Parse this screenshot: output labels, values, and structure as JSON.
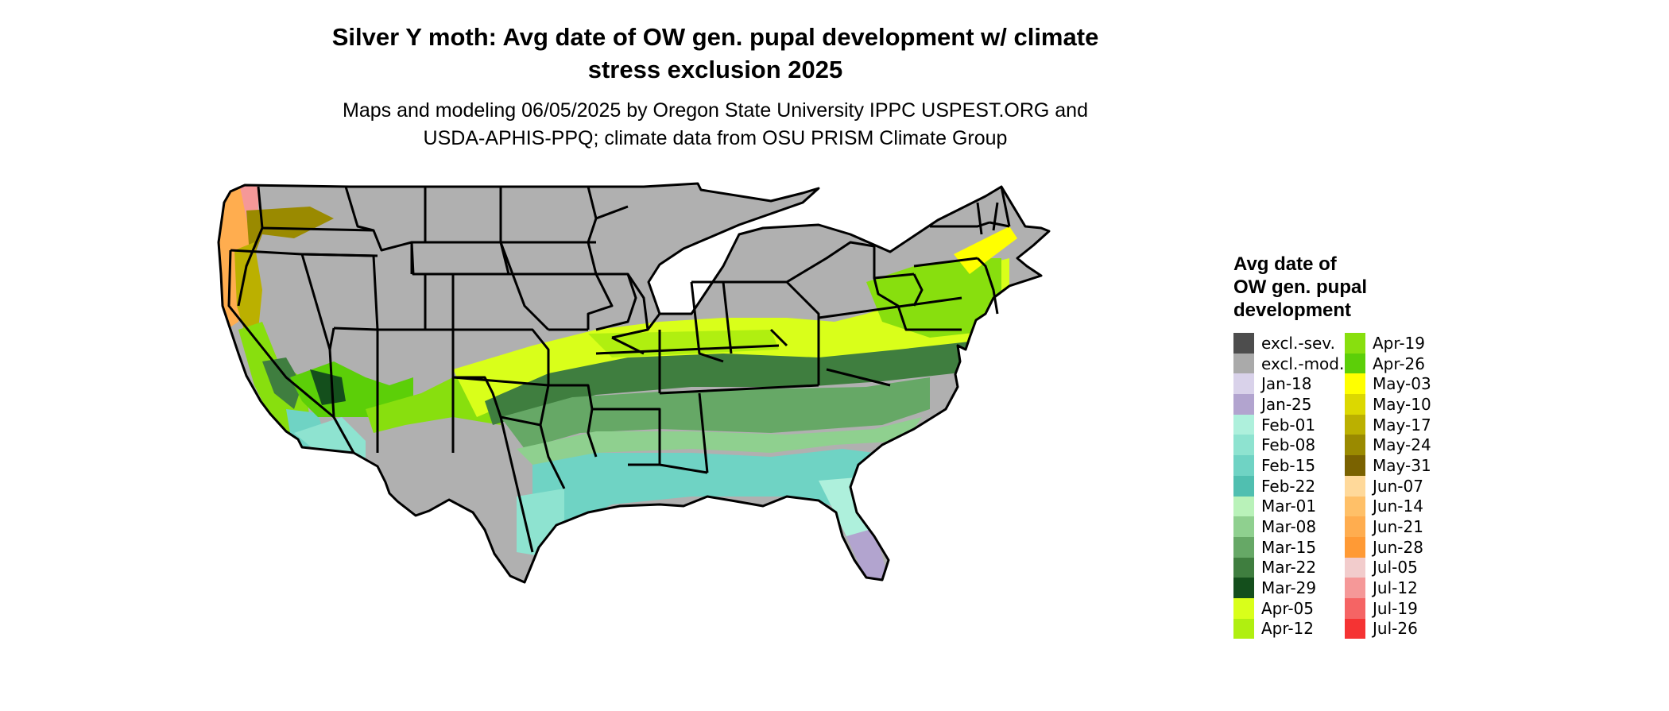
{
  "title_line1": "Silver Y moth: Avg date of OW gen. pupal development w/ climate",
  "title_line2": "stress exclusion 2025",
  "subtitle_line1": "Maps and modeling 06/05/2025 by Oregon State University IPPC USPEST.ORG and",
  "subtitle_line2": "USDA-APHIS-PPQ; climate data from OSU PRISM Climate Group",
  "legend": {
    "title_line1": "Avg date of",
    "title_line2": "OW gen. pupal",
    "title_line3": "development",
    "items": [
      {
        "label": "excl.-sev.",
        "color": "#4d4d4d"
      },
      {
        "label": "excl.-mod.",
        "color": "#aaaaaa"
      },
      {
        "label": "Jan-18",
        "color": "#d9d2ea"
      },
      {
        "label": "Jan-25",
        "color": "#b2a4cf"
      },
      {
        "label": "Feb-01",
        "color": "#aef0dc"
      },
      {
        "label": "Feb-08",
        "color": "#8ee3d0"
      },
      {
        "label": "Feb-15",
        "color": "#6fd3c4"
      },
      {
        "label": "Feb-22",
        "color": "#50bfb0"
      },
      {
        "label": "Mar-01",
        "color": "#b9f2b9"
      },
      {
        "label": "Mar-08",
        "color": "#8fd08f"
      },
      {
        "label": "Mar-15",
        "color": "#66a866"
      },
      {
        "label": "Mar-22",
        "color": "#3f7e3f"
      },
      {
        "label": "Mar-29",
        "color": "#144f1c"
      },
      {
        "label": "Apr-05",
        "color": "#d9ff1a"
      },
      {
        "label": "Apr-12",
        "color": "#b0ef10"
      },
      {
        "label": "Apr-19",
        "color": "#88df0e"
      },
      {
        "label": "Apr-26",
        "color": "#5ccf08"
      },
      {
        "label": "May-03",
        "color": "#ffff00"
      },
      {
        "label": "May-10",
        "color": "#dcd800"
      },
      {
        "label": "May-17",
        "color": "#bbb000"
      },
      {
        "label": "May-24",
        "color": "#9a8a00"
      },
      {
        "label": "May-31",
        "color": "#7a6200"
      },
      {
        "label": "Jun-07",
        "color": "#ffd99a"
      },
      {
        "label": "Jun-14",
        "color": "#ffc068"
      },
      {
        "label": "Jun-21",
        "color": "#ffad4f"
      },
      {
        "label": "Jun-28",
        "color": "#ff9a35"
      },
      {
        "label": "Jul-05",
        "color": "#f2cccc"
      },
      {
        "label": "Jul-12",
        "color": "#f59898"
      },
      {
        "label": "Jul-19",
        "color": "#f56464"
      },
      {
        "label": "Jul-26",
        "color": "#f53333"
      }
    ]
  }
}
